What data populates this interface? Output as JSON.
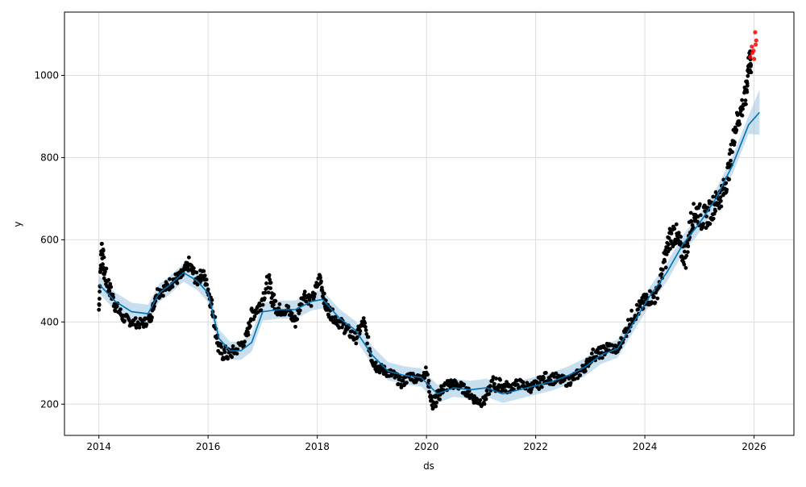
{
  "chart_data": {
    "type": "scatter",
    "title": "",
    "xlabel": "ds",
    "ylabel": "y",
    "xlim": [
      2013.37,
      2026.73
    ],
    "ylim": [
      124,
      1154
    ],
    "x_ticks": [
      2014,
      2016,
      2018,
      2020,
      2022,
      2024,
      2026
    ],
    "x_tick_labels": [
      "2014",
      "2016",
      "2018",
      "2020",
      "2022",
      "2024",
      "2026"
    ],
    "y_ticks": [
      200,
      400,
      600,
      800,
      1000
    ],
    "y_tick_labels": [
      "200",
      "400",
      "600",
      "800",
      "1000"
    ],
    "grid": true,
    "colors": {
      "observed": "#000000",
      "recent": "#ff0000",
      "forecast": "#0072B2",
      "band": "#9bc4e2"
    },
    "forecast": {
      "x": [
        2014.0,
        2014.3,
        2014.6,
        2014.9,
        2015.1,
        2015.3,
        2015.55,
        2015.8,
        2016.0,
        2016.2,
        2016.4,
        2016.6,
        2016.8,
        2017.0,
        2017.3,
        2017.6,
        2017.9,
        2018.1,
        2018.4,
        2018.7,
        2019.0,
        2019.3,
        2019.6,
        2019.9,
        2020.2,
        2020.5,
        2020.8,
        2021.1,
        2021.4,
        2021.7,
        2022.0,
        2022.3,
        2022.6,
        2022.9,
        2023.2,
        2023.5,
        2023.8,
        2024.1,
        2024.4,
        2024.7,
        2025.0,
        2025.3,
        2025.6,
        2025.9,
        2026.1
      ],
      "y": [
        492,
        450,
        425,
        420,
        470,
        490,
        520,
        500,
        470,
        360,
        330,
        330,
        350,
        425,
        430,
        430,
        450,
        455,
        410,
        380,
        320,
        280,
        270,
        265,
        225,
        240,
        235,
        240,
        225,
        235,
        245,
        255,
        270,
        290,
        320,
        335,
        400,
        465,
        520,
        590,
        640,
        700,
        780,
        880,
        910
      ],
      "lower": [
        470,
        428,
        403,
        398,
        448,
        468,
        498,
        478,
        448,
        338,
        308,
        308,
        328,
        403,
        408,
        408,
        428,
        433,
        388,
        358,
        298,
        258,
        248,
        243,
        203,
        218,
        213,
        218,
        203,
        213,
        223,
        233,
        248,
        268,
        298,
        313,
        378,
        443,
        498,
        568,
        618,
        678,
        758,
        858,
        855
      ],
      "upper": [
        514,
        472,
        447,
        442,
        492,
        512,
        542,
        522,
        492,
        382,
        352,
        352,
        372,
        447,
        452,
        452,
        472,
        477,
        432,
        402,
        342,
        302,
        292,
        287,
        247,
        262,
        257,
        262,
        247,
        257,
        267,
        277,
        292,
        312,
        342,
        357,
        422,
        487,
        542,
        612,
        662,
        722,
        802,
        902,
        965
      ]
    },
    "observed": {
      "x": [
        2014.0,
        2014.05,
        2014.1,
        2014.2,
        2014.3,
        2014.45,
        2014.6,
        2014.8,
        2014.95,
        2015.05,
        2015.2,
        2015.35,
        2015.5,
        2015.65,
        2015.8,
        2015.9,
        2016.0,
        2016.1,
        2016.2,
        2016.35,
        2016.5,
        2016.7,
        2016.8,
        2016.95,
        2017.1,
        2017.2,
        2017.3,
        2017.45,
        2017.6,
        2017.75,
        2017.9,
        2018.05,
        2018.15,
        2018.25,
        2018.4,
        2018.55,
        2018.7,
        2018.85,
        2019.0,
        2019.1,
        2019.25,
        2019.4,
        2019.55,
        2019.7,
        2019.85,
        2020.0,
        2020.1,
        2020.2,
        2020.3,
        2020.45,
        2020.6,
        2020.75,
        2020.9,
        2021.05,
        2021.2,
        2021.35,
        2021.5,
        2021.7,
        2021.9,
        2022.05,
        2022.2,
        2022.4,
        2022.6,
        2022.75,
        2022.9,
        2023.05,
        2023.2,
        2023.35,
        2023.5,
        2023.65,
        2023.8,
        2023.95,
        2024.05,
        2024.2,
        2024.35,
        2024.45,
        2024.55,
        2024.65,
        2024.75,
        2024.85,
        2024.95,
        2025.05,
        2025.15,
        2025.25,
        2025.35,
        2025.45,
        2025.55,
        2025.65,
        2025.75,
        2025.85,
        2025.9
      ],
      "y": [
        430,
        590,
        520,
        480,
        440,
        410,
        400,
        395,
        410,
        470,
        480,
        500,
        510,
        540,
        500,
        520,
        480,
        420,
        330,
        320,
        330,
        360,
        420,
        440,
        500,
        450,
        430,
        430,
        400,
        470,
        450,
        510,
        440,
        420,
        400,
        380,
        360,
        400,
        310,
        290,
        280,
        270,
        250,
        270,
        260,
        280,
        200,
        215,
        240,
        250,
        245,
        230,
        210,
        205,
        250,
        245,
        240,
        250,
        240,
        250,
        265,
        260,
        255,
        270,
        290,
        320,
        325,
        340,
        330,
        380,
        420,
        440,
        460,
        460,
        540,
        600,
        620,
        580,
        560,
        650,
        670,
        650,
        660,
        680,
        700,
        720,
        780,
        870,
        910,
        950,
        1030
      ],
      "spread": [
        15,
        30,
        25,
        18,
        15,
        12,
        12,
        12,
        12,
        15,
        15,
        15,
        15,
        18,
        15,
        15,
        20,
        25,
        20,
        15,
        15,
        15,
        20,
        20,
        25,
        20,
        15,
        15,
        15,
        15,
        15,
        15,
        15,
        15,
        15,
        15,
        15,
        15,
        15,
        12,
        12,
        12,
        12,
        12,
        12,
        12,
        20,
        15,
        15,
        12,
        12,
        12,
        12,
        12,
        20,
        15,
        12,
        12,
        12,
        15,
        15,
        12,
        12,
        12,
        12,
        15,
        15,
        12,
        12,
        20,
        20,
        20,
        20,
        20,
        30,
        30,
        30,
        30,
        30,
        30,
        30,
        30,
        30,
        30,
        30,
        30,
        30,
        30,
        30,
        30,
        30
      ]
    },
    "recent": {
      "x": [
        2025.93,
        2025.96,
        2025.99,
        2026.02,
        2026.04,
        2026.0,
        2025.97,
        2026.03
      ],
      "y": [
        1045,
        1070,
        1060,
        1105,
        1085,
        1040,
        1055,
        1075
      ]
    }
  }
}
